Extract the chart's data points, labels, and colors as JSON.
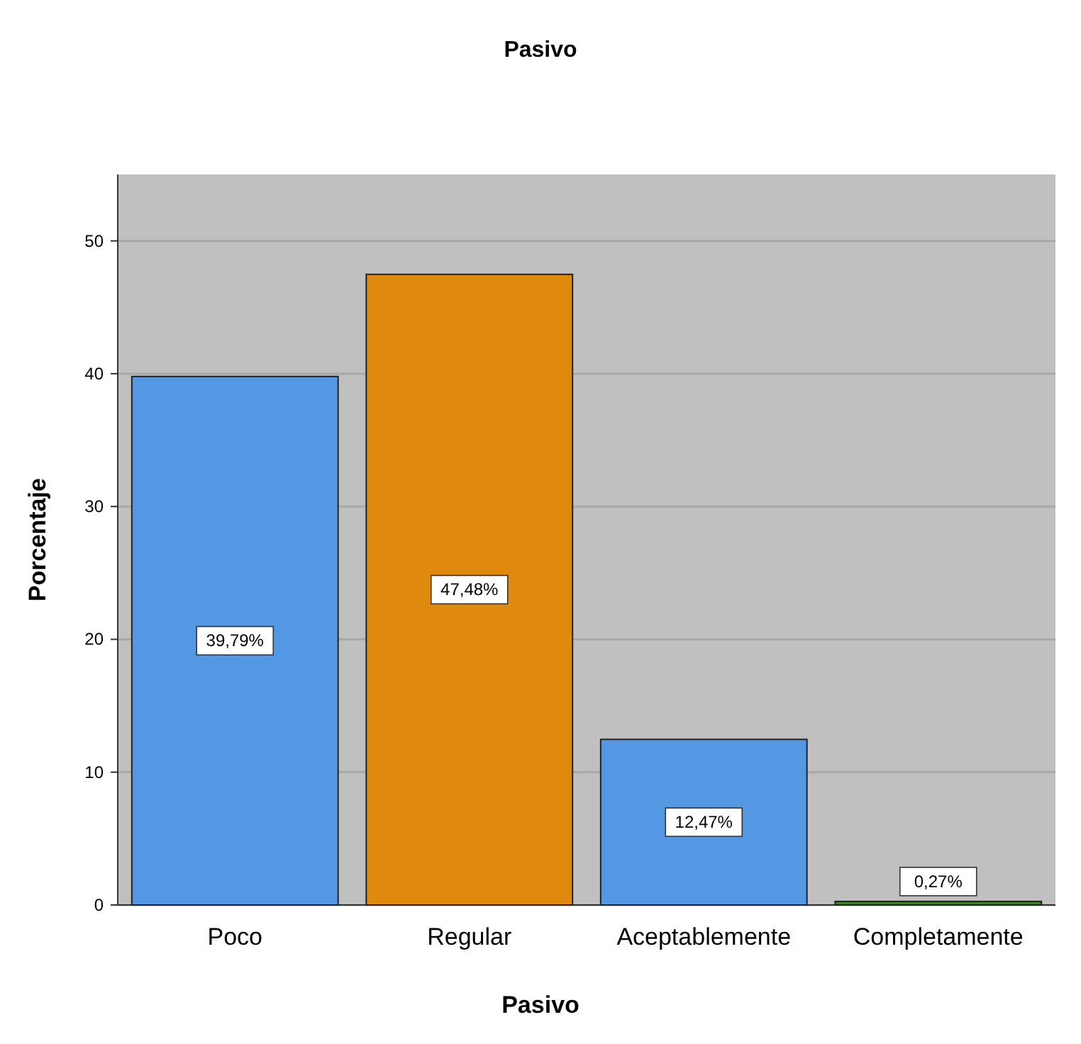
{
  "chart_data": {
    "type": "bar",
    "title": "Pasivo",
    "xlabel": "Pasivo",
    "ylabel": "Porcentaje",
    "categories": [
      "Poco",
      "Regular",
      "Aceptablemente",
      "Completamente"
    ],
    "values": [
      39.79,
      47.48,
      12.47,
      0.27
    ],
    "colors": [
      "#5497e3",
      "#e0890f",
      "#5497e3",
      "#3f7f25"
    ],
    "value_labels": [
      "39,79%",
      "47,48%",
      "12,47%",
      "0,27%"
    ],
    "ylim": [
      0,
      55
    ],
    "yticks": [
      0,
      10,
      20,
      30,
      40,
      50
    ],
    "grid": "y"
  }
}
